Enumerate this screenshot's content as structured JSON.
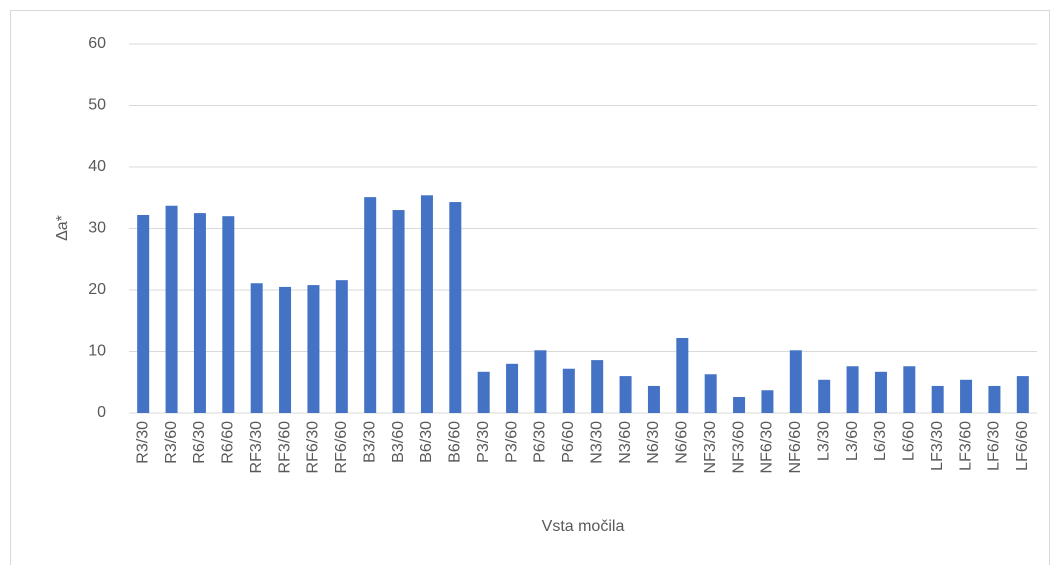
{
  "chart_data": {
    "type": "bar",
    "x_label": "Vsta močila",
    "y_label": "Δa*",
    "categories": [
      "R3/30",
      "R3/60",
      "R6/30",
      "R6/60",
      "RF3/30",
      "RF3/60",
      "RF6/30",
      "RF6/60",
      "B3/30",
      "B3/60",
      "B6/30",
      "B6/60",
      "P3/30",
      "P3/60",
      "P6/30",
      "P6/60",
      "N3/30",
      "N3/60",
      "N6/30",
      "N6/60",
      "NF3/30",
      "NF3/60",
      "NF6/30",
      "NF6/60",
      "L3/30",
      "L3/60",
      "L6/30",
      "L6/60",
      "LF3/30",
      "LF3/60",
      "LF6/30",
      "LF6/60"
    ],
    "values": [
      32.2,
      33.7,
      32.5,
      32.0,
      21.1,
      20.5,
      20.8,
      21.6,
      35.1,
      33.0,
      35.4,
      34.3,
      6.7,
      8.0,
      10.2,
      7.2,
      8.6,
      6.0,
      4.4,
      12.2,
      6.3,
      2.6,
      3.7,
      10.2,
      5.4,
      7.6,
      6.7,
      7.6,
      4.4,
      5.4,
      4.4,
      6.0
    ],
    "color": "#4472c4",
    "ylim": [
      0,
      60
    ],
    "yticks": [
      0,
      10,
      20,
      30,
      40,
      50,
      60
    ],
    "grid": true
  }
}
